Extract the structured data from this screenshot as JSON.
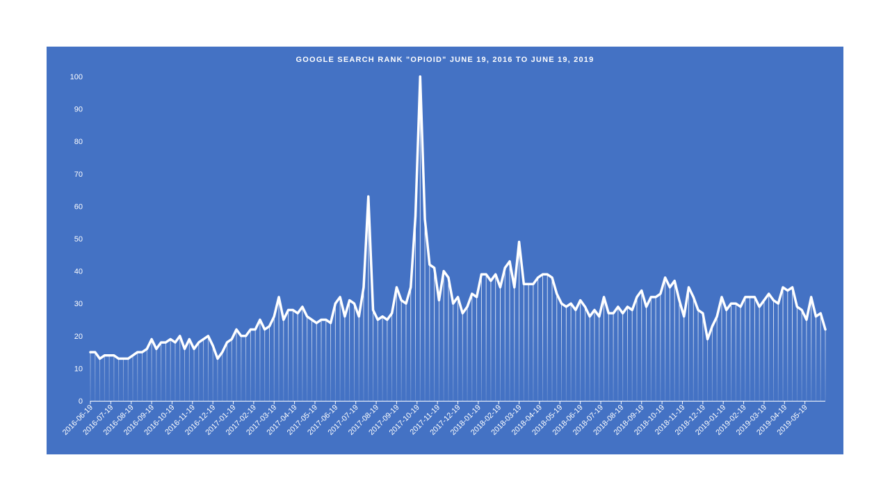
{
  "chart_data": {
    "type": "line",
    "title": "GOOGLE  SEARCH  RANK  \"OPIOID\"  JUNE  19, 2016 TO JUNE 19, 2019",
    "xlabel": "",
    "ylabel": "",
    "ylim": [
      0,
      100
    ],
    "y_ticks": [
      0,
      10,
      20,
      30,
      40,
      50,
      60,
      70,
      80,
      90,
      100
    ],
    "x_tick_labels": [
      "2016-06-19",
      "2016-07-19",
      "2016-08-19",
      "2016-09-19",
      "2016-10-19",
      "2016-11-19",
      "2016-12-19",
      "2017-01-19",
      "2017-02-19",
      "2017-03-19",
      "2017-04-19",
      "2017-05-19",
      "2017-06-19",
      "2017-07-19",
      "2017-08-19",
      "2017-09-19",
      "2017-10-19",
      "2017-11-19",
      "2017-12-19",
      "2018-01-19",
      "2018-02-19",
      "2018-03-19",
      "2018-04-19",
      "2018-05-19",
      "2018-06-19",
      "2018-07-19",
      "2018-08-19",
      "2018-09-19",
      "2018-10-19",
      "2018-11-19",
      "2018-12-19",
      "2019-01-19",
      "2019-02-19",
      "2019-03-19",
      "2019-04-19",
      "2019-05-19"
    ],
    "grid": false,
    "legend": "none",
    "line_color": "#ffffff",
    "background_color": "#4472c4",
    "series": [
      {
        "values": [
          15,
          15,
          13,
          14,
          14,
          14,
          13,
          13,
          13,
          14,
          15,
          15,
          16,
          19,
          16,
          18,
          18,
          19,
          18,
          20,
          16,
          19,
          16,
          18,
          19,
          20,
          17,
          13,
          15,
          18,
          19,
          22,
          20,
          20,
          22,
          22,
          25,
          22,
          23,
          26,
          32,
          25,
          28,
          28,
          27,
          29,
          26,
          25,
          24,
          25,
          25,
          24,
          30,
          32,
          26,
          31,
          30,
          26,
          35,
          63,
          28,
          25,
          26,
          25,
          27,
          35,
          31,
          30,
          35,
          57,
          100,
          56,
          42,
          41,
          31,
          40,
          38,
          30,
          32,
          27,
          29,
          33,
          32,
          39,
          39,
          37,
          39,
          35,
          41,
          43,
          35,
          49,
          36,
          36,
          36,
          38,
          39,
          39,
          38,
          33,
          30,
          29,
          30,
          28,
          31,
          29,
          26,
          28,
          26,
          32,
          27,
          27,
          29,
          27,
          29,
          28,
          32,
          34,
          29,
          32,
          32,
          33,
          38,
          35,
          37,
          31,
          26,
          35,
          32,
          28,
          27,
          19,
          23,
          26,
          32,
          28,
          30,
          30,
          29,
          32,
          32,
          32,
          29,
          31,
          33,
          31,
          30,
          35,
          34,
          35,
          29,
          28,
          25,
          32,
          26,
          27,
          22
        ]
      }
    ]
  }
}
